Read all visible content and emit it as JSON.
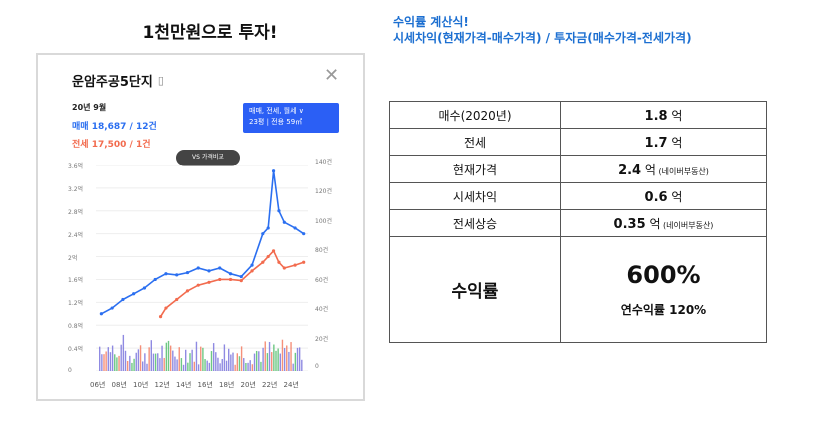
{
  "headline": "1천만원으로 투자!",
  "formula": {
    "title": "수익률 계산식!",
    "expression": "시세차익(현재가격-매수가격) / 투자금(매수가격-전세가격)"
  },
  "card": {
    "title": "운암주공5단지",
    "period": "20년 9월",
    "sale_line": "매매 18,687 / 12건",
    "lease_line": "전세 17,500 / 1건",
    "filter_line1": "매매, 전세, 월세 ∨",
    "filter_line2": "23평 | 전용 59㎡",
    "vs_button": "VS 가격비교",
    "colors": {
      "sale": "#2b6ff0",
      "lease": "#f26b4e",
      "filter_bg": "#2b5ff5"
    }
  },
  "chart_data": {
    "type": "line",
    "x": [
      "06년",
      "08년",
      "10년",
      "12년",
      "14년",
      "16년",
      "18년",
      "20년",
      "22년",
      "24년"
    ],
    "y_left_ticks": [
      "3.6억",
      "3.2억",
      "2.8억",
      "2.4억",
      "2억",
      "1.6억",
      "1.2억",
      "0.8억",
      "0.4억",
      "0"
    ],
    "y_right_ticks": [
      "140건",
      "120건",
      "100건",
      "80건",
      "60건",
      "40건",
      "20건",
      "0"
    ],
    "series": [
      {
        "name": "매매",
        "color": "#2b6ff0",
        "points": [
          [
            2006.0,
            1.0
          ],
          [
            2007.0,
            1.1
          ],
          [
            2008.0,
            1.25
          ],
          [
            2009.0,
            1.35
          ],
          [
            2010.0,
            1.45
          ],
          [
            2011.0,
            1.6
          ],
          [
            2012.0,
            1.7
          ],
          [
            2013.0,
            1.68
          ],
          [
            2014.0,
            1.72
          ],
          [
            2015.0,
            1.8
          ],
          [
            2016.0,
            1.75
          ],
          [
            2017.0,
            1.8
          ],
          [
            2018.0,
            1.7
          ],
          [
            2019.0,
            1.65
          ],
          [
            2020.0,
            1.85
          ],
          [
            2021.0,
            2.4
          ],
          [
            2021.5,
            2.5
          ],
          [
            2022.0,
            3.5
          ],
          [
            2022.5,
            2.8
          ],
          [
            2023.0,
            2.6
          ],
          [
            2024.0,
            2.5
          ],
          [
            2024.8,
            2.4
          ]
        ]
      },
      {
        "name": "전세",
        "color": "#f26b4e",
        "points": [
          [
            2011.5,
            0.95
          ],
          [
            2012.0,
            1.1
          ],
          [
            2013.0,
            1.25
          ],
          [
            2014.0,
            1.4
          ],
          [
            2015.0,
            1.5
          ],
          [
            2016.0,
            1.55
          ],
          [
            2017.0,
            1.6
          ],
          [
            2018.0,
            1.6
          ],
          [
            2019.0,
            1.58
          ],
          [
            2020.0,
            1.75
          ],
          [
            2021.0,
            1.9
          ],
          [
            2021.5,
            2.0
          ],
          [
            2022.0,
            2.1
          ],
          [
            2022.5,
            1.9
          ],
          [
            2023.0,
            1.8
          ],
          [
            2024.0,
            1.85
          ],
          [
            2024.8,
            1.9
          ]
        ]
      }
    ]
  },
  "table": {
    "rows": [
      {
        "label": "매수(2020년)",
        "value": "1.8",
        "unit": "억",
        "note": ""
      },
      {
        "label": "전세",
        "value": "1.7",
        "unit": "억",
        "note": ""
      },
      {
        "label": "현재가격",
        "value": "2.4",
        "unit": "억",
        "note": "(네이버부동산)"
      },
      {
        "label": "시세차익",
        "value": "0.6",
        "unit": "억",
        "note": ""
      },
      {
        "label": "전세상승",
        "value": "0.35",
        "unit": "억",
        "note": "(네이버부동산)"
      }
    ],
    "roi_label": "수익률",
    "roi_value": "600%",
    "annual_roi": "연수익률 120%"
  }
}
